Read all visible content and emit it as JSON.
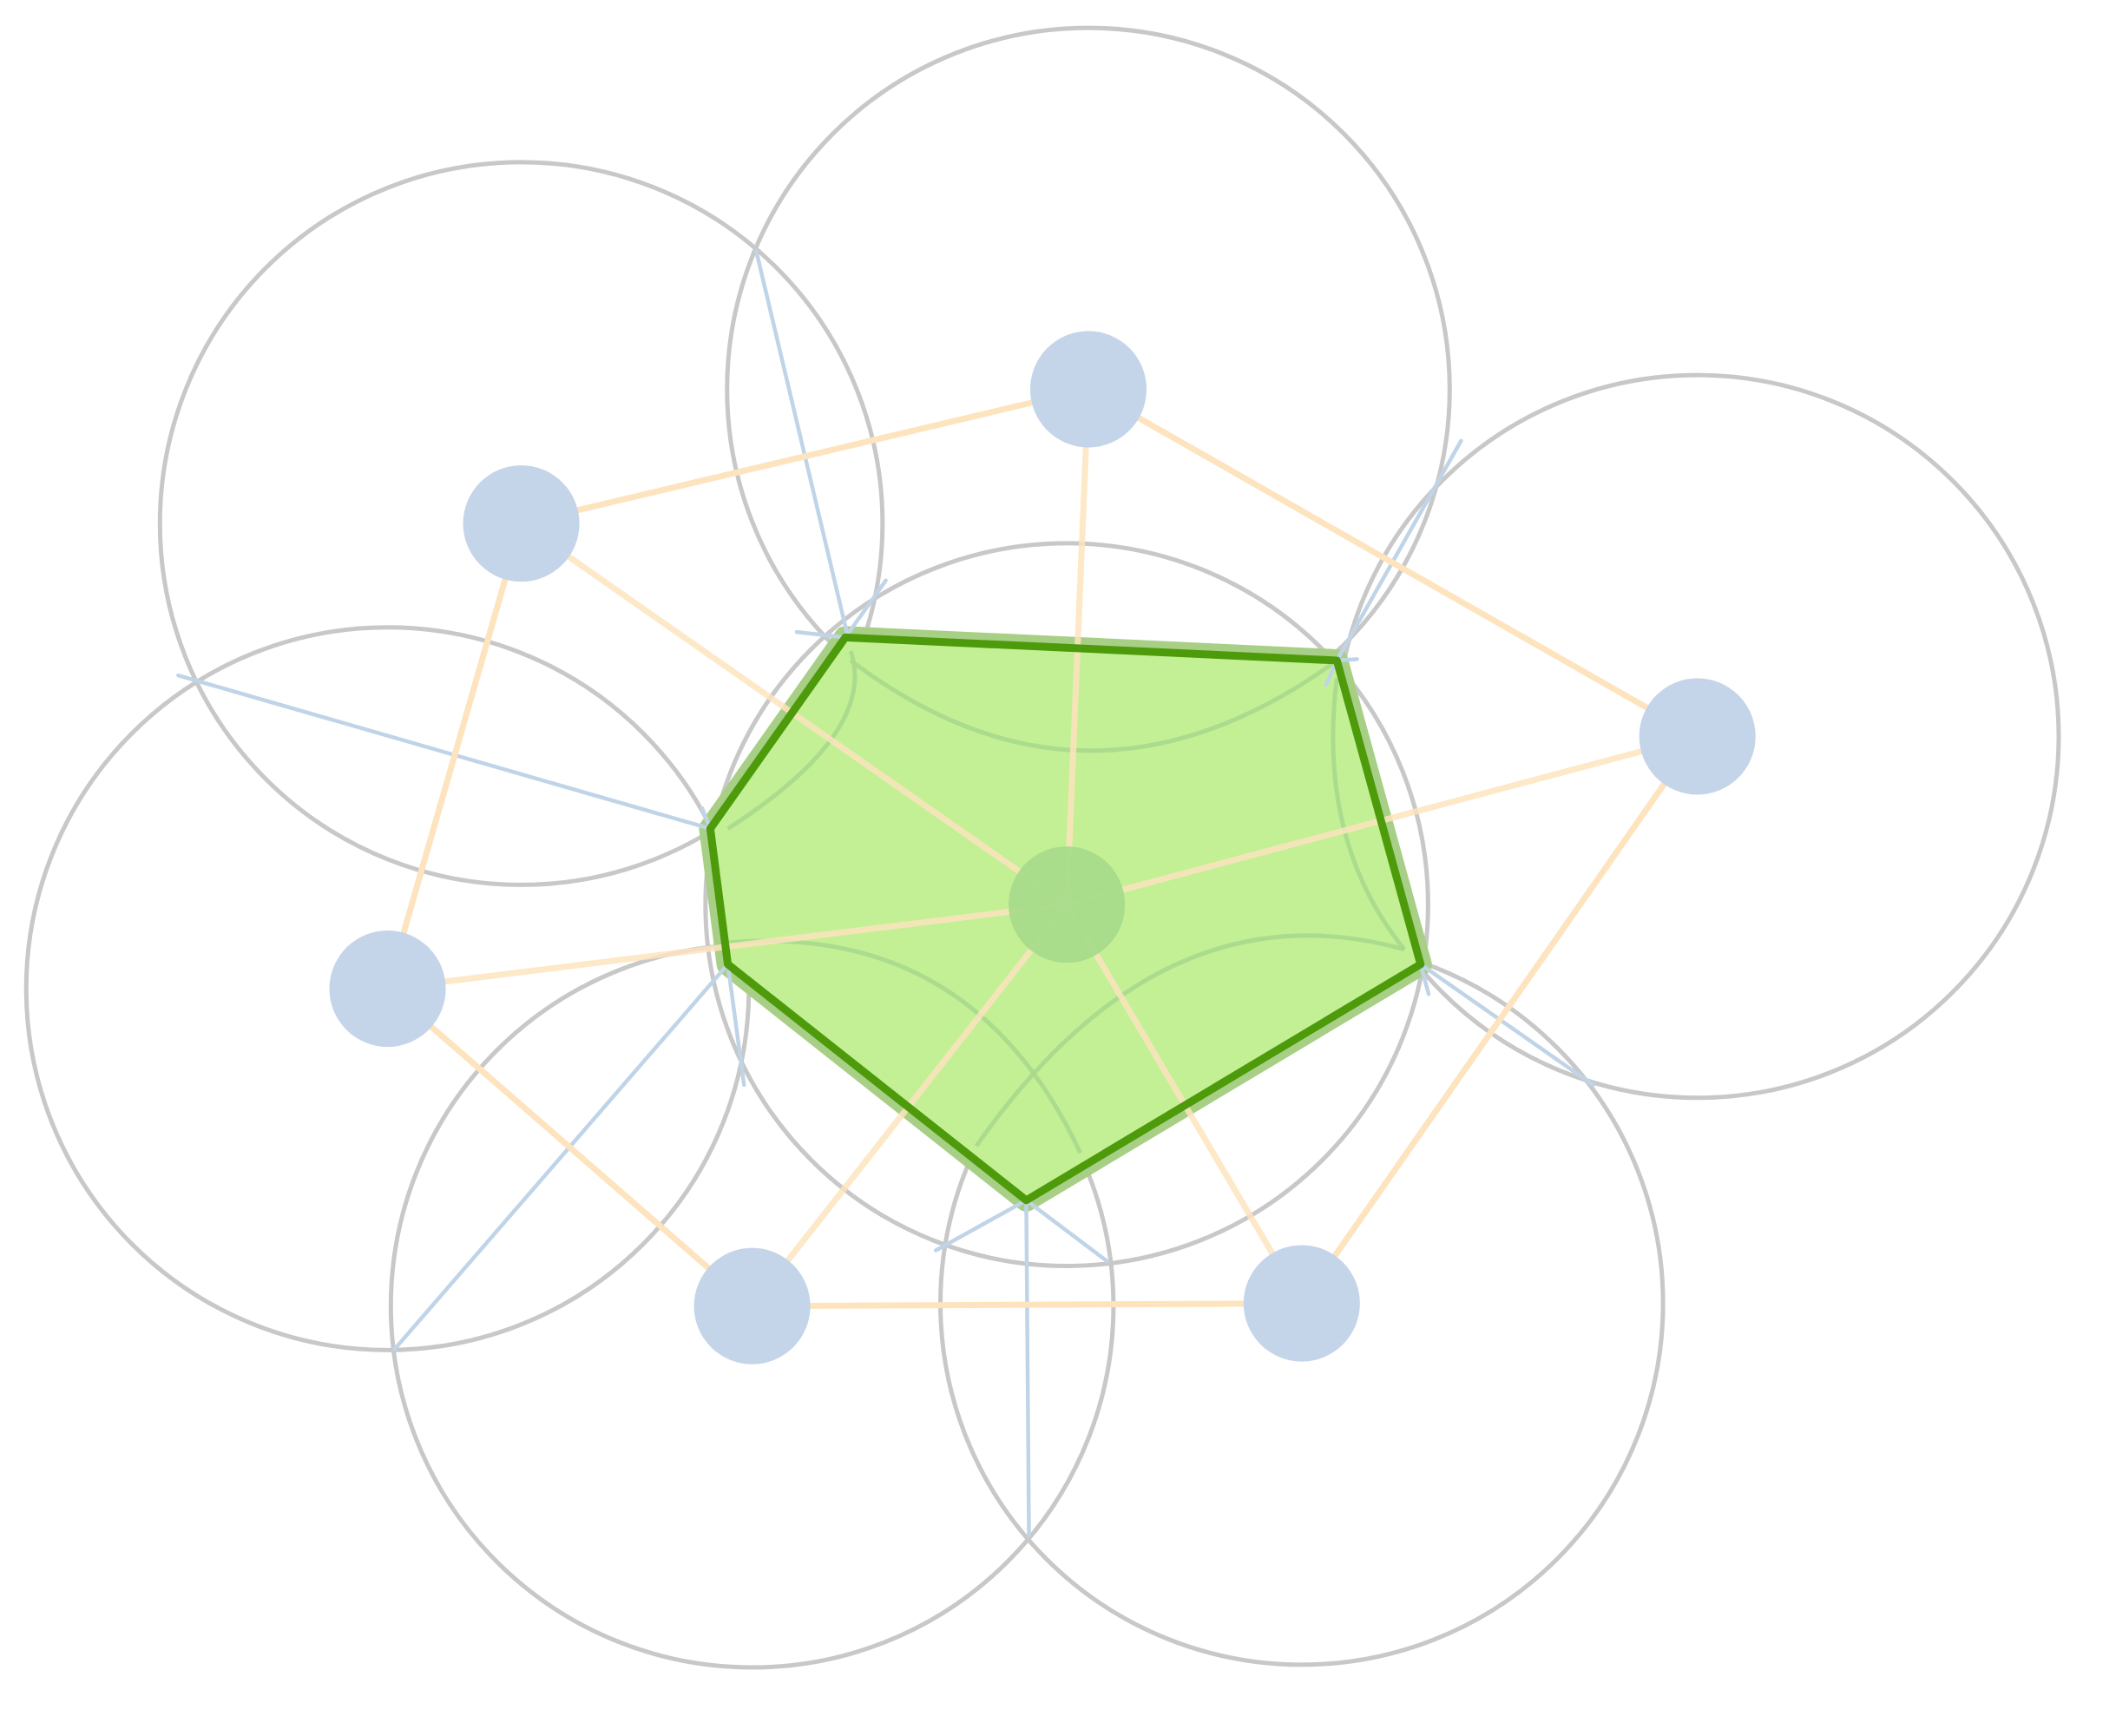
{
  "diagram": {
    "kind": "voronoi-cell-construction",
    "texts": [],
    "colors": {
      "background": "#ffffff",
      "circle_stroke": "#c8c8c8",
      "site_fill": "#c5d5e9",
      "center_site_fill": "#a8db8a",
      "delaunay_edge": "#fde4bf",
      "bisector": "#c0d4e8",
      "cell_fill": "#c3f095",
      "cell_halo": "#a8cf86",
      "cell_outline": "#4d9a0a",
      "inner_arc": "#a9d98c"
    },
    "icons": [
      "site-dot",
      "center-site-dot",
      "empty-circle",
      "voronoi-cell"
    ]
  }
}
